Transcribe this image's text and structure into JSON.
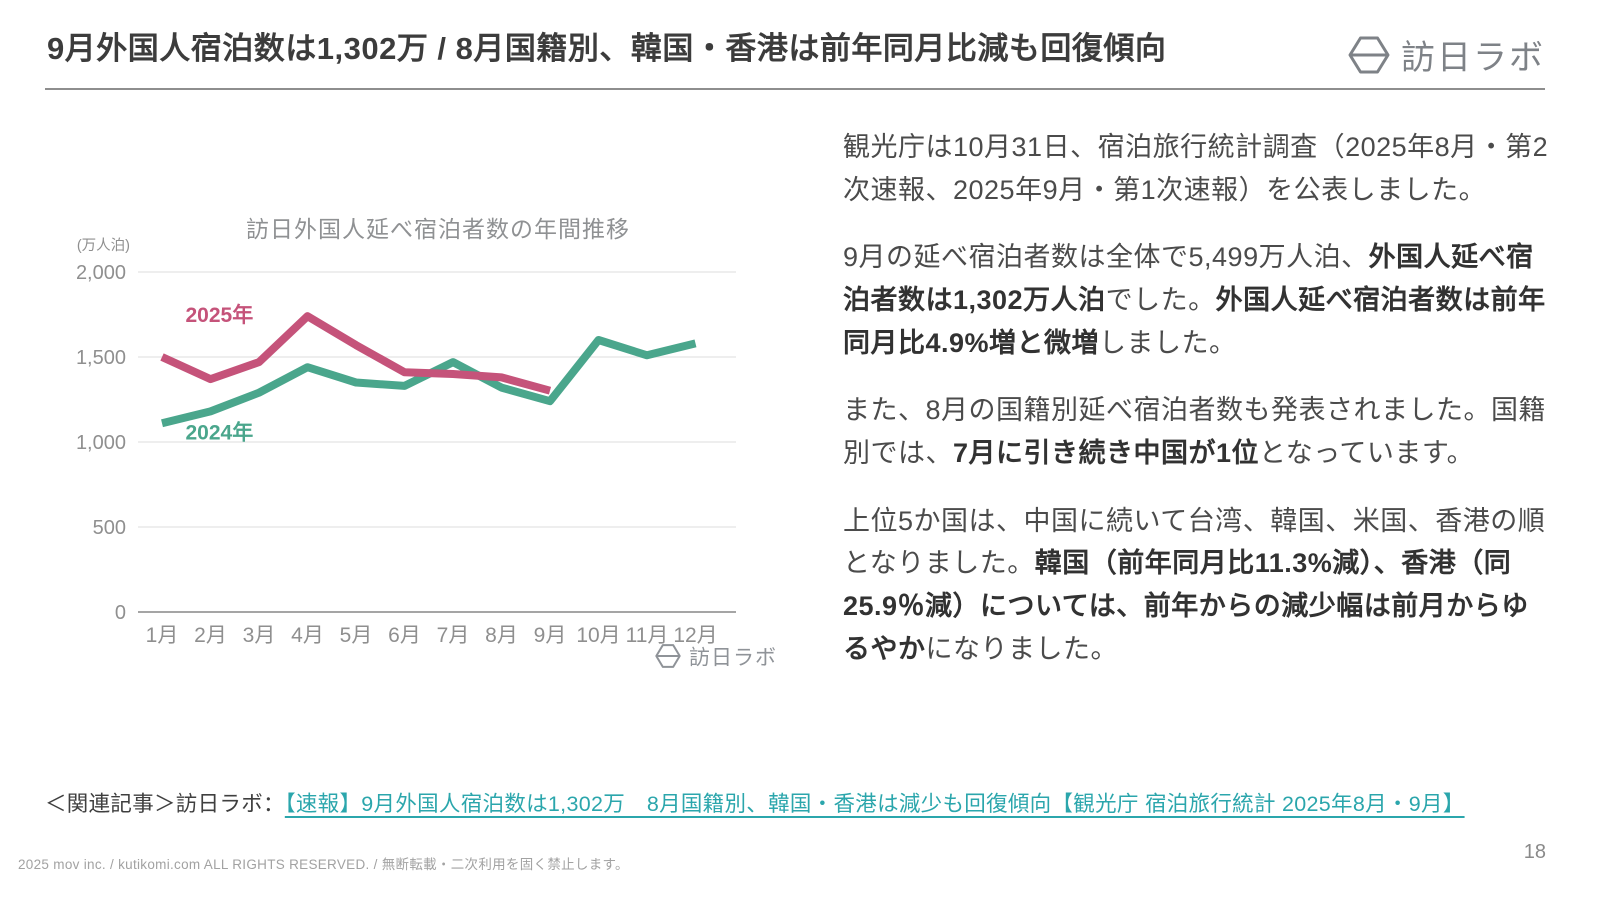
{
  "header": {
    "title": "9月外国人宿泊数は1,302万 / 8月国籍別、韓国・香港は前年同月比減も回復傾向",
    "brand": "訪日ラボ"
  },
  "chart_data": {
    "type": "line",
    "title": "訪日外国人延べ宿泊者数の年間推移",
    "unit_label": "(万人泊)",
    "categories": [
      "1月",
      "2月",
      "3月",
      "4月",
      "5月",
      "6月",
      "7月",
      "8月",
      "9月",
      "10月",
      "11月",
      "12月"
    ],
    "series": [
      {
        "name": "2024年",
        "color": "#4aa68c",
        "values": [
          1110,
          1180,
          1290,
          1440,
          1350,
          1330,
          1470,
          1320,
          1240,
          1600,
          1510,
          1580
        ]
      },
      {
        "name": "2025年",
        "color": "#c5537a",
        "values": [
          1500,
          1370,
          1470,
          1740,
          1570,
          1410,
          1400,
          1380,
          1302
        ]
      }
    ],
    "ylim": [
      0,
      2000
    ],
    "yticks": [
      0,
      500,
      1000,
      1500,
      2000
    ],
    "grid": true,
    "legend_position": "inline-labels",
    "watermark": "訪日ラボ"
  },
  "article": {
    "paragraphs": [
      {
        "runs": [
          {
            "text": "観光庁は10月31日、宿泊旅行統計調査（2025年8月・第2次速報、2025年9月・第1次速報）を公表しました。",
            "bold": false
          }
        ]
      },
      {
        "runs": [
          {
            "text": "9月の延べ宿泊者数は全体で5,499万人泊、",
            "bold": false
          },
          {
            "text": "外国人延べ宿泊者数は1,302万人泊",
            "bold": true
          },
          {
            "text": "でした。",
            "bold": false
          },
          {
            "text": "外国人延べ宿泊者数は前年同月比4.9%増と微増",
            "bold": true
          },
          {
            "text": "しました。",
            "bold": false
          }
        ]
      },
      {
        "runs": [
          {
            "text": "また、8月の国籍別延べ宿泊者数も発表されました。国籍別では、",
            "bold": false
          },
          {
            "text": "7月に引き続き中国が1位",
            "bold": true
          },
          {
            "text": "となっています。",
            "bold": false
          }
        ]
      },
      {
        "runs": [
          {
            "text": "上位5か国は、中国に続いて台湾、韓国、米国、香港の順となりました。",
            "bold": false
          },
          {
            "text": "韓国（前年同月比11.3%減）、香港（同25.9％減）については、前年からの減少幅は前月からゆるやか",
            "bold": true
          },
          {
            "text": "になりました。",
            "bold": false
          }
        ]
      }
    ]
  },
  "related": {
    "prefix": "＜関連記事＞訪日ラボ：",
    "link_text": "【速報】9月外国人宿泊数は1,302万　8月国籍別、韓国・香港は減少も回復傾向【観光庁 宿泊旅行統計 2025年8月・9月】",
    "link_color": "#2ba6ac"
  },
  "footer": {
    "copyright": "2025 mov inc. / kutikomi.com ALL RIGHTS RESERVED. / 無断転載・二次利用を固く禁止します。",
    "page_number": "18"
  },
  "colors": {
    "title_text": "#3c3c3c",
    "body_text": "#4b4b4b",
    "grid_line": "#e4e4e4",
    "axis_line": "#a5a5a5",
    "axis_text": "#8f8f8f",
    "brand_gray": "#7e8287"
  }
}
